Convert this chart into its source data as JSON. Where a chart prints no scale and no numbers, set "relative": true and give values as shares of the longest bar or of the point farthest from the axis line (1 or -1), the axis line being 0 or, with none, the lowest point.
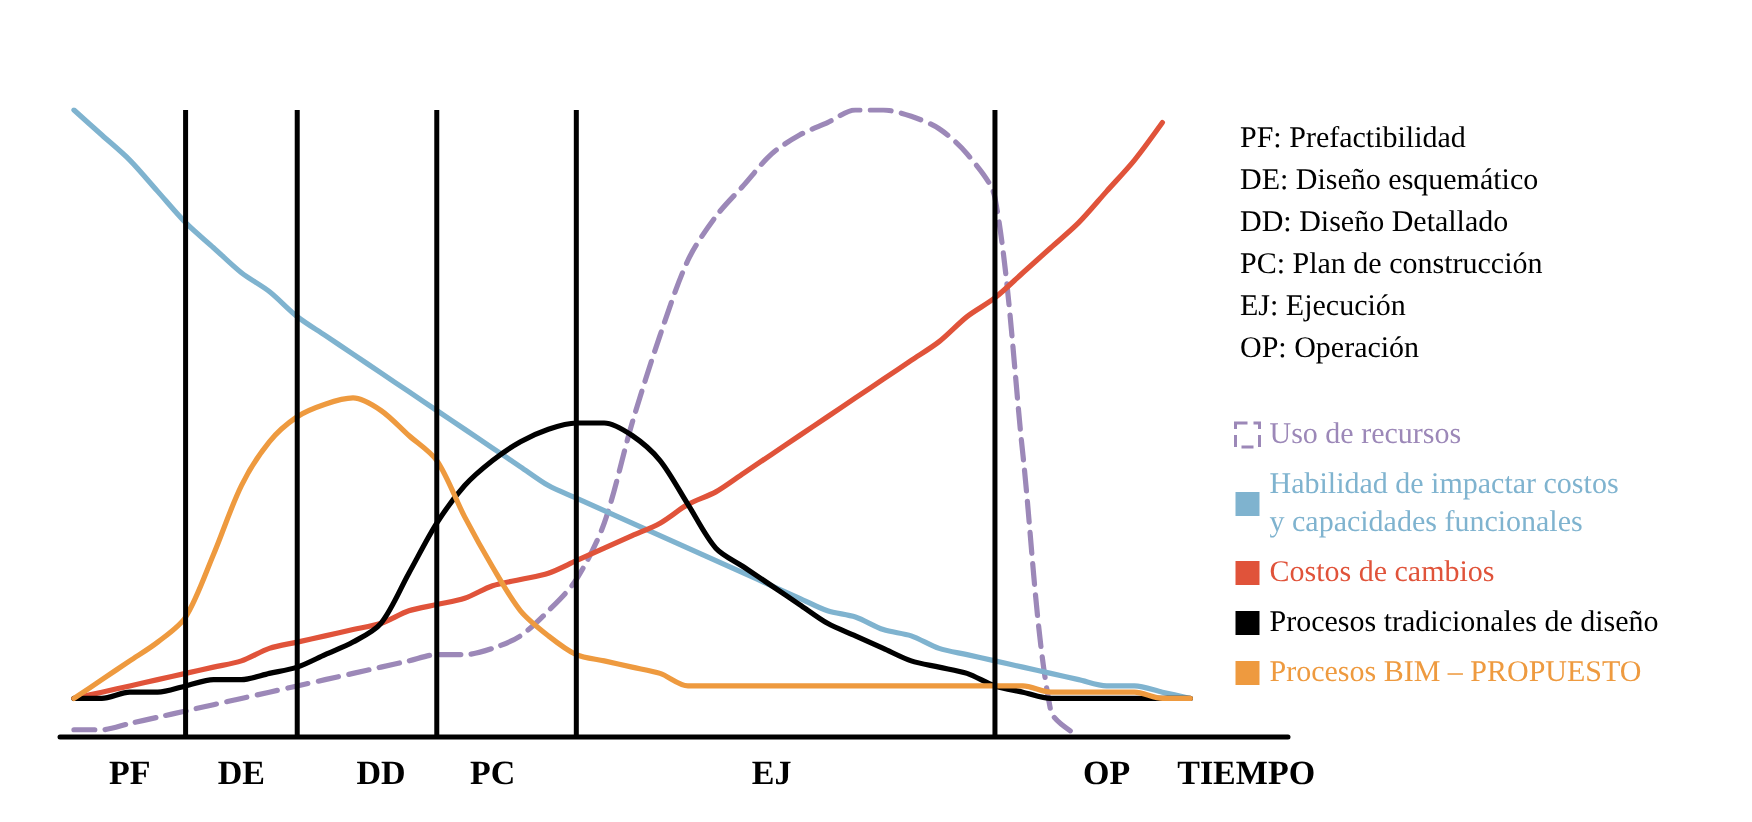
{
  "chart_data": {
    "type": "line",
    "relative": true,
    "marker": "none",
    "grid": "x",
    "legend": "right",
    "categories": [
      null,
      null,
      "PF",
      null,
      null,
      null,
      "DE",
      null,
      null,
      null,
      null,
      "DD",
      null,
      null,
      null,
      "PC",
      null,
      null,
      null,
      null,
      null,
      null,
      null,
      null,
      null,
      "EJ",
      null,
      null,
      null,
      null,
      null,
      null,
      null,
      null,
      null,
      null,
      null,
      "OP",
      null,
      null,
      null,
      null,
      "TIEMPO",
      null
    ],
    "annotations": [
      "PF: Prefactibilidad",
      "DE: Diseño esquemático",
      "DD: Diseño Detallado",
      "PC: Plan de construcción",
      "EJ: Ejecución",
      "OP: Operación"
    ],
    "series": [
      {
        "name": "Uso de recursos",
        "color": "#9c88b8",
        "line_style": "dashed",
        "values": [
          0.01,
          0.01,
          0.02,
          0.03,
          0.04,
          0.05,
          0.06,
          0.07,
          0.08,
          0.09,
          0.1,
          0.11,
          0.12,
          0.13,
          0.13,
          0.14,
          0.16,
          0.2,
          0.25,
          0.34,
          0.5,
          0.64,
          0.76,
          0.83,
          0.88,
          0.93,
          0.96,
          0.98,
          1.0,
          1.0,
          0.99,
          0.97,
          0.93,
          0.86,
          0.45,
          0.04,
          0,
          null,
          null,
          null,
          null,
          null,
          null,
          null
        ]
      },
      {
        "name": "Habilidad de impactar costos\ny capacidades funcionales",
        "color": "#7fb3cf",
        "values": [
          1.0,
          0.96,
          0.92,
          0.87,
          0.82,
          0.78,
          0.74,
          0.71,
          0.67,
          0.64,
          0.61,
          0.58,
          0.55,
          0.52,
          0.49,
          0.46,
          0.43,
          0.4,
          0.38,
          0.36,
          0.34,
          0.32,
          0.3,
          0.28,
          0.26,
          0.24,
          0.22,
          0.2,
          0.19,
          0.17,
          0.16,
          0.14,
          0.13,
          0.12,
          0.11,
          0.1,
          0.09,
          0.08,
          0.08,
          0.07,
          0.06,
          null,
          null,
          null
        ]
      },
      {
        "name": "Costos de cambios",
        "color": "#e0533a",
        "values": [
          0.06,
          0.07,
          0.08,
          0.09,
          0.1,
          0.11,
          0.12,
          0.14,
          0.15,
          0.16,
          0.17,
          0.18,
          0.2,
          0.21,
          0.22,
          0.24,
          0.25,
          0.26,
          0.28,
          0.3,
          0.32,
          0.34,
          0.37,
          0.39,
          0.42,
          0.45,
          0.48,
          0.51,
          0.54,
          0.57,
          0.6,
          0.63,
          0.67,
          0.7,
          0.74,
          0.78,
          0.82,
          0.87,
          0.92,
          0.98,
          null,
          null,
          null,
          null
        ]
      },
      {
        "name": "Procesos tradicionales de diseño",
        "color": "#000000",
        "values": [
          0.06,
          0.06,
          0.07,
          0.07,
          0.08,
          0.09,
          0.09,
          0.1,
          0.11,
          0.13,
          0.15,
          0.18,
          0.26,
          0.34,
          0.4,
          0.44,
          0.47,
          0.49,
          0.5,
          0.5,
          0.48,
          0.44,
          0.37,
          0.3,
          0.27,
          0.24,
          0.21,
          0.18,
          0.16,
          0.14,
          0.12,
          0.11,
          0.1,
          0.08,
          0.07,
          0.06,
          0.06,
          0.06,
          0.06,
          0.06,
          0.06,
          null,
          null,
          null
        ]
      },
      {
        "name": "Procesos BIM – PROPUESTO",
        "color": "#ee9a3f",
        "values": [
          0.06,
          0.09,
          0.12,
          0.15,
          0.19,
          0.29,
          0.4,
          0.47,
          0.51,
          0.53,
          0.54,
          0.52,
          0.48,
          0.44,
          0.35,
          0.27,
          0.2,
          0.16,
          0.13,
          0.12,
          0.11,
          0.1,
          0.08,
          0.08,
          0.08,
          0.08,
          0.08,
          0.08,
          0.08,
          0.08,
          0.08,
          0.08,
          0.08,
          0.08,
          0.08,
          0.07,
          0.07,
          0.07,
          0.07,
          0.06,
          0.06,
          null,
          null,
          null
        ]
      }
    ]
  }
}
